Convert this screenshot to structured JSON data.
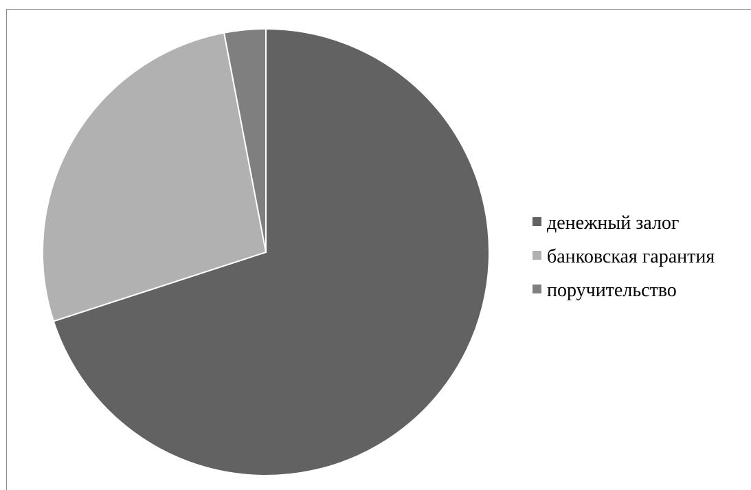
{
  "chart_data": {
    "type": "pie",
    "categories": [
      "денежный залог",
      "банковская гарантия",
      "поручительство"
    ],
    "values": [
      70,
      27,
      3
    ],
    "colors": [
      "#626262",
      "#b1b1b1",
      "#7f7f7f"
    ],
    "title": "",
    "legend_position": "right"
  }
}
